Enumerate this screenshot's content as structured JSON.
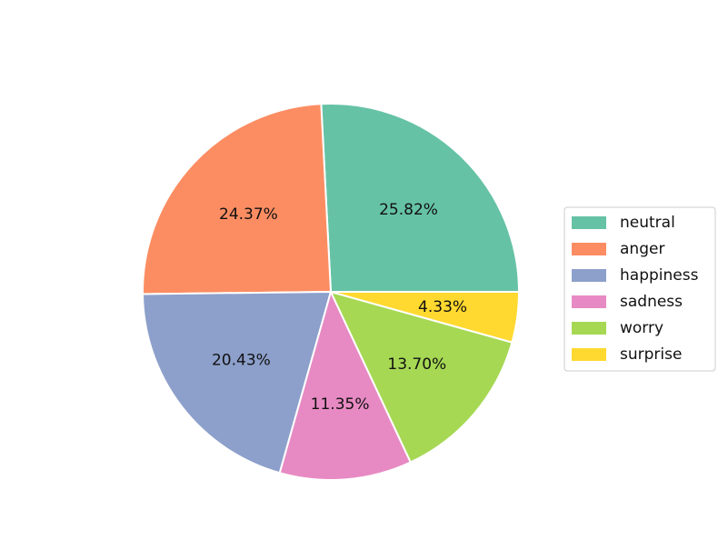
{
  "chart_data": {
    "type": "pie",
    "categories": [
      "neutral",
      "anger",
      "happiness",
      "sadness",
      "worry",
      "surprise"
    ],
    "values": [
      25.82,
      24.37,
      20.43,
      11.35,
      13.7,
      4.33
    ],
    "value_labels": [
      "25.82%",
      "24.37%",
      "20.43%",
      "11.35%",
      "13.70%",
      "4.33%"
    ],
    "colors": [
      "#66c2a5",
      "#fc8d62",
      "#8da0cb",
      "#e78ac3",
      "#a6d854",
      "#ffd92f"
    ],
    "legend": "right"
  }
}
